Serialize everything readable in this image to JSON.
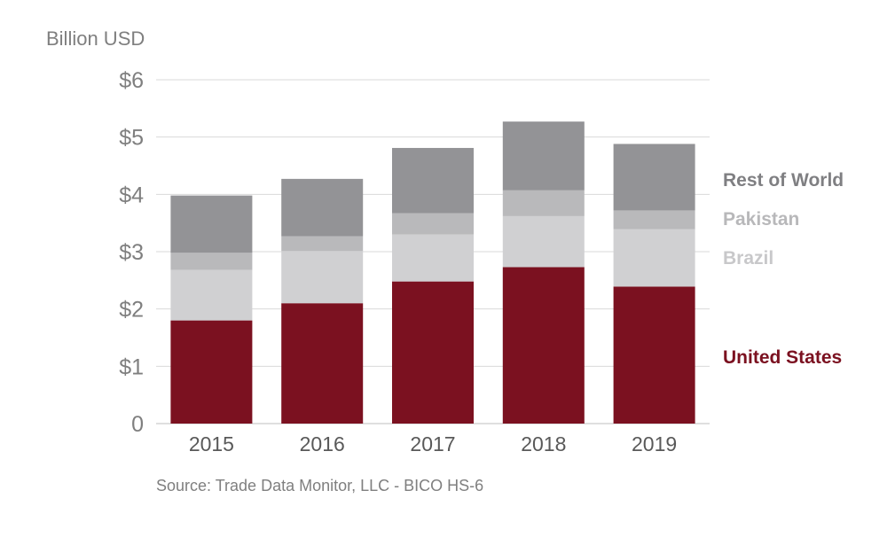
{
  "chart_data": {
    "type": "bar",
    "stacked": true,
    "ylabel": "Billion USD",
    "source": "Source: Trade Data Monitor, LLC - BICO HS-6",
    "ylim": [
      0,
      6
    ],
    "yticks": [
      {
        "value": 0,
        "label": "0"
      },
      {
        "value": 1,
        "label": "$1"
      },
      {
        "value": 2,
        "label": "$2"
      },
      {
        "value": 3,
        "label": "$3"
      },
      {
        "value": 4,
        "label": "$4"
      },
      {
        "value": 5,
        "label": "$5"
      },
      {
        "value": 6,
        "label": "$6"
      }
    ],
    "grid": true,
    "legend_position": "right",
    "categories": [
      "2015",
      "2016",
      "2017",
      "2018",
      "2019"
    ],
    "series": [
      {
        "name": "United States",
        "color": "#7b1120",
        "values": [
          1.8,
          2.1,
          2.48,
          2.73,
          2.39
        ]
      },
      {
        "name": "Brazil",
        "color": "#d0d0d2",
        "values": [
          0.88,
          0.91,
          0.82,
          0.89,
          1.0
        ]
      },
      {
        "name": "Pakistan",
        "color": "#b9b9bb",
        "values": [
          0.3,
          0.26,
          0.37,
          0.45,
          0.33
        ]
      },
      {
        "name": "Rest of World",
        "color": "#939396",
        "values": [
          1.0,
          1.0,
          1.14,
          1.2,
          1.16
        ]
      }
    ]
  }
}
